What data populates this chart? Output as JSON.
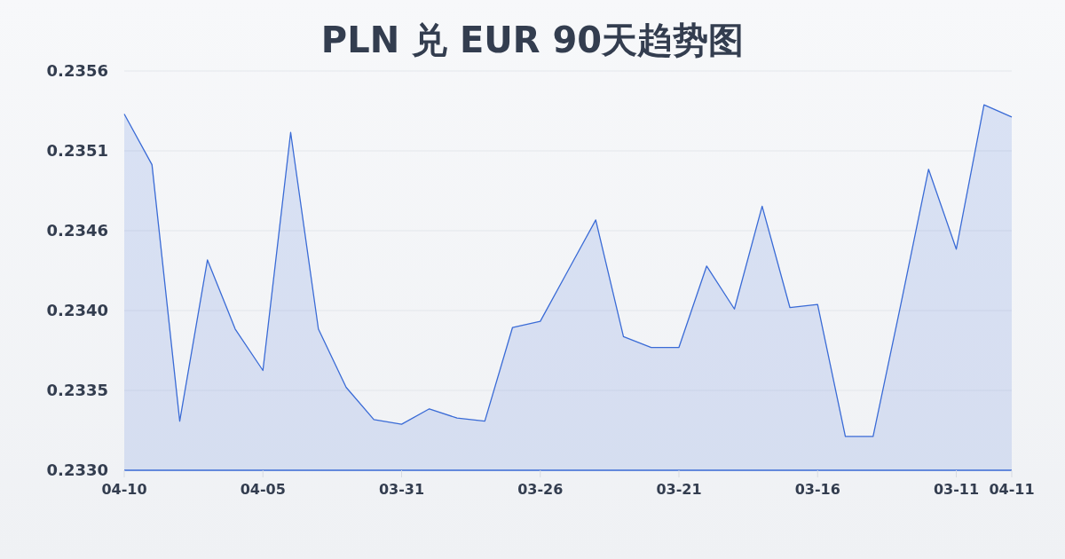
{
  "chart_data": {
    "type": "area",
    "title": "PLN 兑 EUR 90天趋势图",
    "categories": [
      "04-10",
      null,
      null,
      null,
      null,
      "04-05",
      null,
      null,
      null,
      null,
      "03-31",
      null,
      null,
      null,
      null,
      "03-26",
      null,
      null,
      null,
      null,
      "03-21",
      null,
      null,
      null,
      null,
      "03-16",
      null,
      null,
      null,
      null,
      "03-11",
      null,
      "04-11"
    ],
    "values": [
      0.23532,
      0.23499,
      0.23332,
      0.23437,
      0.23392,
      0.23365,
      0.2352,
      0.23392,
      0.23354,
      0.23333,
      0.2333,
      0.2334,
      0.23334,
      0.23332,
      0.23393,
      0.23397,
      0.2343,
      0.23463,
      0.23387,
      0.2338,
      0.2338,
      0.23433,
      0.23405,
      0.23472,
      0.23406,
      0.23408,
      0.23322,
      0.23322,
      0.23408,
      0.23496,
      0.23444,
      0.23538,
      0.2353
    ],
    "color": "#3a6bd6",
    "ylim": [
      0.233,
      0.2356
    ],
    "yticks": [
      {
        "value": 0.233,
        "label": "0.2330"
      },
      {
        "value": 0.23352,
        "label": "0.2335"
      },
      {
        "value": 0.23404,
        "label": "0.2340"
      },
      {
        "value": 0.23456,
        "label": "0.2346"
      },
      {
        "value": 0.23508,
        "label": "0.2351"
      },
      {
        "value": 0.2356,
        "label": "0.2356"
      }
    ],
    "grid": "y"
  }
}
